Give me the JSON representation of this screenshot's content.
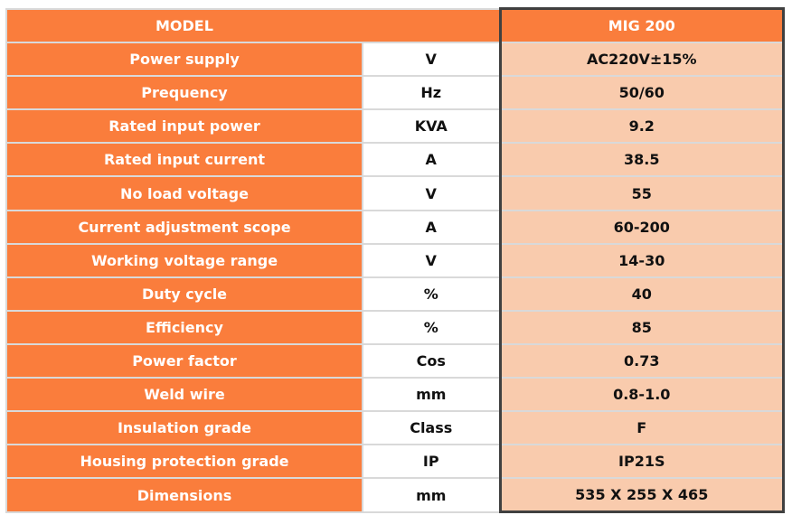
{
  "table": {
    "header": [
      "MODEL",
      "MIG 200"
    ],
    "rows": [
      [
        "Power supply",
        "V",
        "AC220V±15%"
      ],
      [
        "Prequency",
        "Hz",
        "50/60"
      ],
      [
        "Rated input power",
        "KVA",
        "9.2"
      ],
      [
        "Rated  input current",
        "A",
        "38.5"
      ],
      [
        "No load voltage",
        "V",
        "55"
      ],
      [
        "Current adjustment scope",
        "A",
        "60-200"
      ],
      [
        "Working voltage  range",
        "V",
        "14-30"
      ],
      [
        "Duty cycle",
        "%",
        "40"
      ],
      [
        "Efficiency",
        "%",
        "85"
      ],
      [
        "Power factor",
        "Cos",
        "0.73"
      ],
      [
        "Weld wire",
        "mm",
        "0.8-1.0"
      ],
      [
        "Insulation grade",
        "Class",
        "F"
      ],
      [
        "Housing protection grade",
        "IP",
        "IP21S"
      ],
      [
        "Dimensions",
        "mm",
        "535 X 255 X 465"
      ]
    ]
  }
}
